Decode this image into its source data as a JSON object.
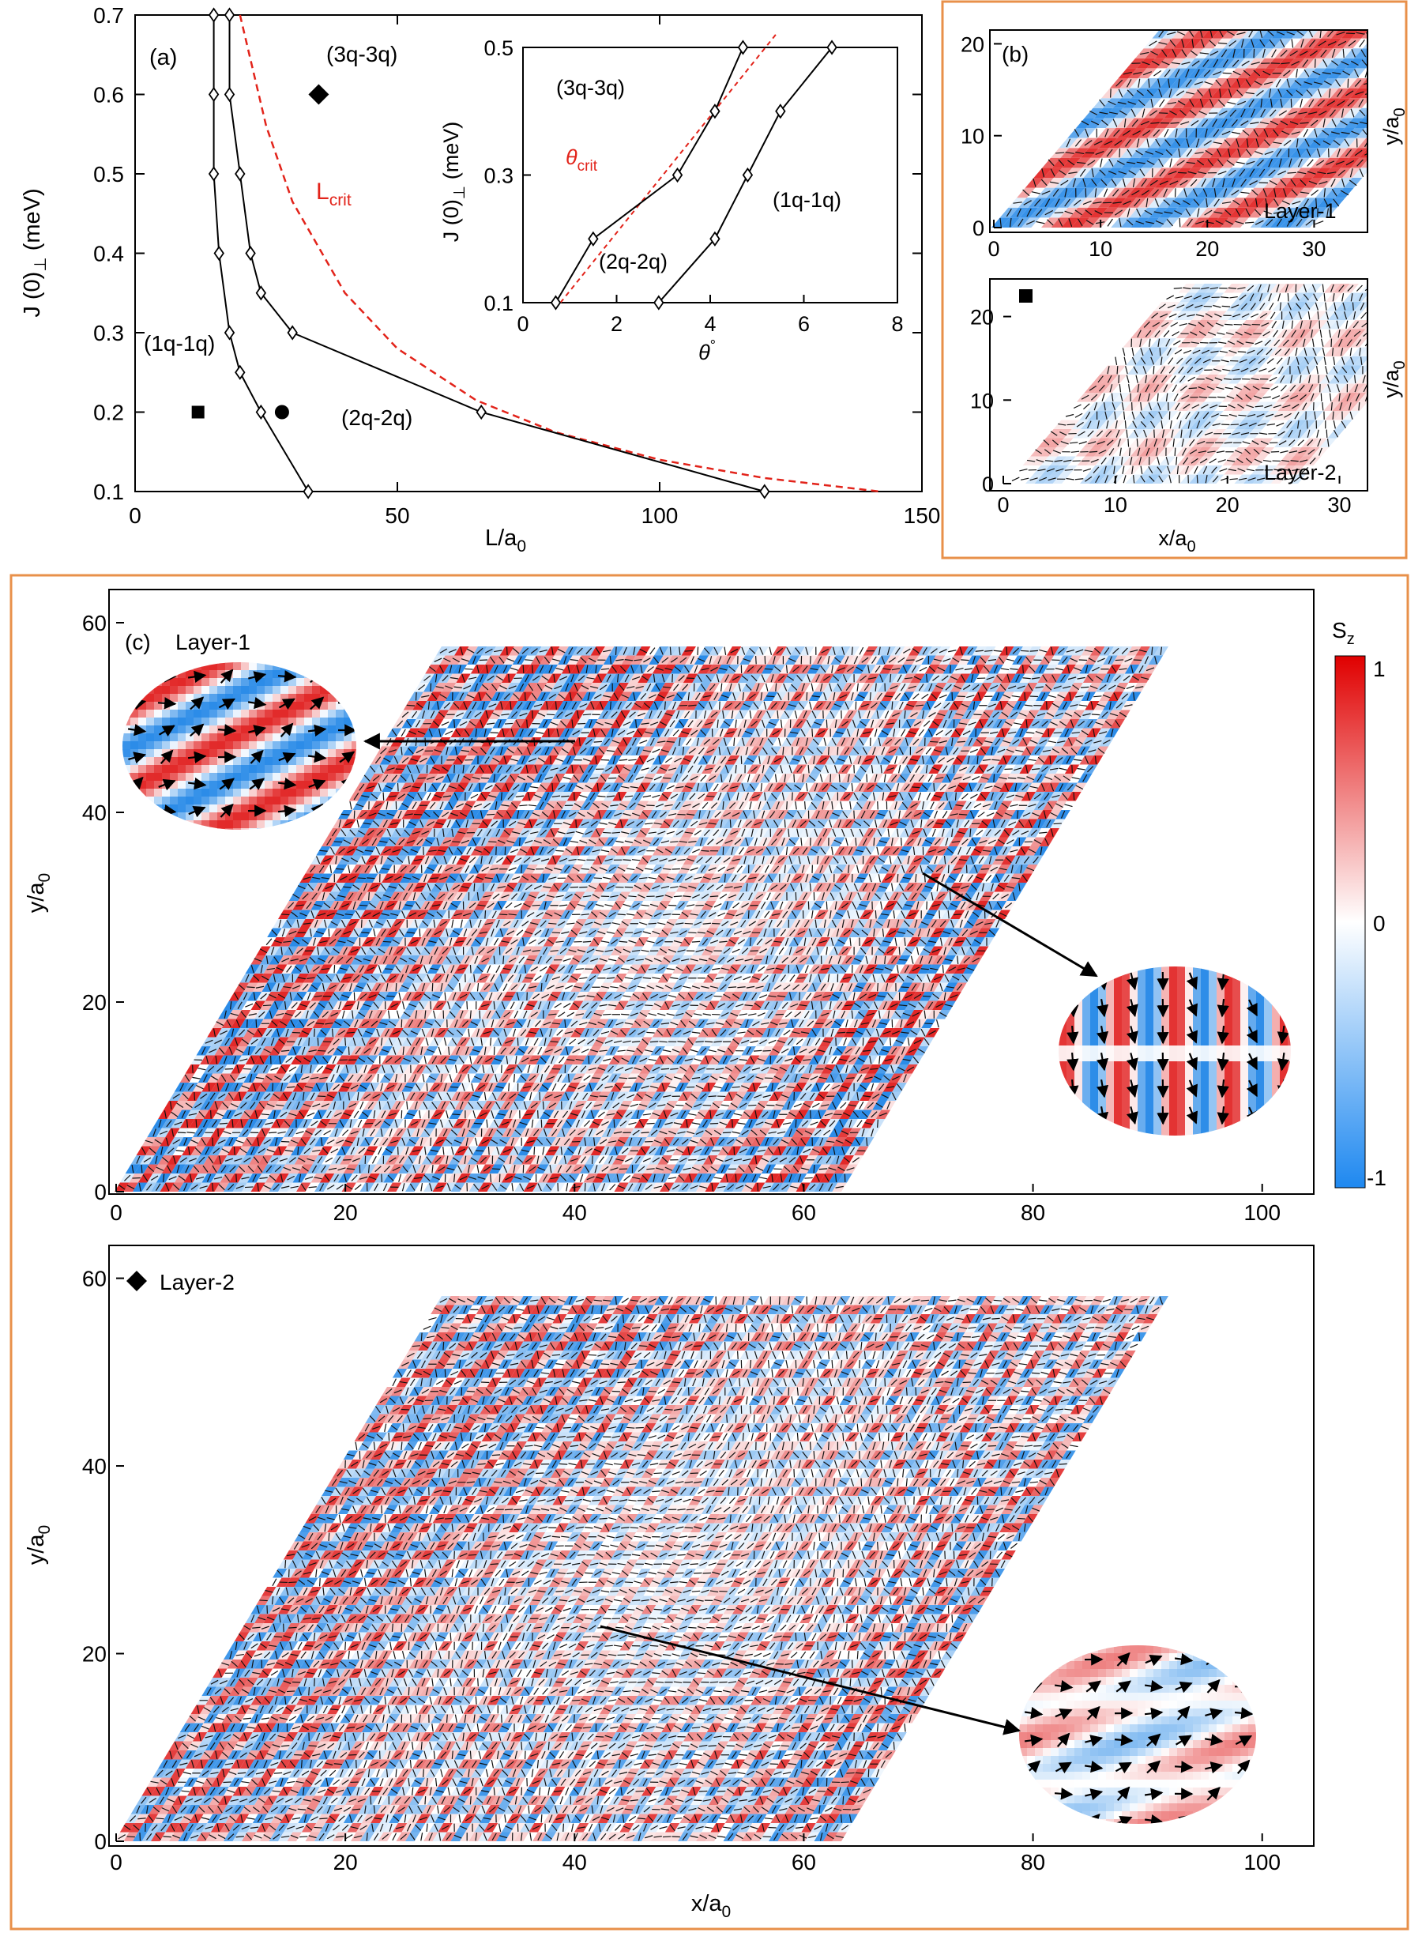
{
  "chart_data": [
    {
      "panel": "(a)",
      "type": "line",
      "xlabel": "L/a",
      "xlabel_sub": "0",
      "ylabel": "J (0)",
      "ylabel_sub": "⊥",
      "ylabel_unit": "(meV)",
      "xlim": [
        0,
        150
      ],
      "ylim": [
        0.1,
        0.7
      ],
      "xticks": [
        0,
        50,
        100,
        150
      ],
      "yticks": [
        0.1,
        0.2,
        0.3,
        0.4,
        0.5,
        0.6,
        0.7
      ],
      "series": [
        {
          "x": [
            15,
            15,
            15,
            16,
            18,
            20,
            24,
            33
          ],
          "y": [
            0.7,
            0.6,
            0.5,
            0.4,
            0.3,
            0.25,
            0.2,
            0.1
          ]
        },
        {
          "x": [
            18,
            18,
            20,
            22,
            24,
            30,
            66,
            120
          ],
          "y": [
            0.7,
            0.6,
            0.5,
            0.4,
            0.35,
            0.3,
            0.2,
            0.1
          ]
        }
      ],
      "critical_curve": {
        "label": "L",
        "label_sub": "crit",
        "x": [
          20,
          25,
          30,
          40,
          50,
          65,
          80,
          100,
          120,
          142
        ],
        "y": [
          0.7,
          0.56,
          0.465,
          0.35,
          0.28,
          0.215,
          0.175,
          0.14,
          0.117,
          0.1
        ]
      },
      "markers": [
        {
          "shape": "square",
          "x": 12,
          "y": 0.2
        },
        {
          "shape": "circle",
          "x": 28,
          "y": 0.2
        },
        {
          "shape": "diamond",
          "x": 35,
          "y": 0.6
        }
      ],
      "region_labels": [
        "(3q-3q)",
        "(1q-1q)",
        "(2q-2q)"
      ],
      "inset": {
        "xlabel": "θ",
        "xlabel_sup": "°",
        "ylabel": "J (0)",
        "ylabel_sub": "⊥",
        "ylabel_unit": "(meV)",
        "xlim": [
          0,
          8
        ],
        "ylim": [
          0.1,
          0.5
        ],
        "xticks": [
          0,
          2,
          4,
          6,
          8
        ],
        "yticks": [
          0.1,
          0.3,
          0.5
        ],
        "series": [
          {
            "x": [
              0.7,
              1.5,
              3.3,
              4.1,
              4.7
            ],
            "y": [
              0.1,
              0.2,
              0.3,
              0.4,
              0.5
            ]
          },
          {
            "x": [
              2.9,
              4.1,
              4.8,
              5.5,
              6.6
            ],
            "y": [
              0.1,
              0.2,
              0.3,
              0.4,
              0.5
            ]
          }
        ],
        "critical_line": {
          "label": "θ",
          "label_sub": "crit",
          "x": [
            0.8,
            5.4
          ],
          "y": [
            0.1,
            0.52
          ]
        },
        "region_labels": [
          "(3q-3q)",
          "(2q-2q)",
          "(1q-1q)"
        ]
      }
    },
    {
      "panel": "(b)",
      "type": "heatmap",
      "layers": [
        {
          "name": "Layer-1",
          "ylabel": "y/a",
          "ylabel_sub": "0",
          "xticks": [
            0,
            10,
            20,
            30
          ],
          "yticks": [
            0,
            10,
            20
          ]
        },
        {
          "name": "Layer-2",
          "ylabel": "y/a",
          "ylabel_sub": "0",
          "xlabel": "x/a",
          "xlabel_sub": "0",
          "xticks": [
            0,
            10,
            20,
            30
          ],
          "yticks": [
            0,
            10,
            20
          ]
        }
      ]
    },
    {
      "panel": "(c)",
      "type": "heatmap",
      "layers": [
        {
          "name": "Layer-1",
          "ylabel": "y/a",
          "ylabel_sub": "0",
          "xticks": [
            0,
            20,
            40,
            60,
            80,
            100
          ],
          "yticks": [
            0,
            20,
            40,
            60
          ]
        },
        {
          "name": "Layer-2",
          "ylabel": "y/a",
          "ylabel_sub": "0",
          "xlabel": "x/a",
          "xlabel_sub": "0",
          "xticks": [
            0,
            20,
            40,
            60,
            80,
            100
          ],
          "yticks": [
            0,
            20,
            40,
            60
          ]
        }
      ],
      "colorbar": {
        "label": "S",
        "label_sub": "z",
        "ticks": [
          "1",
          "0",
          "-1"
        ],
        "colors": [
          "#d7191c",
          "#ffffff",
          "#2c8ae8"
        ]
      }
    }
  ]
}
